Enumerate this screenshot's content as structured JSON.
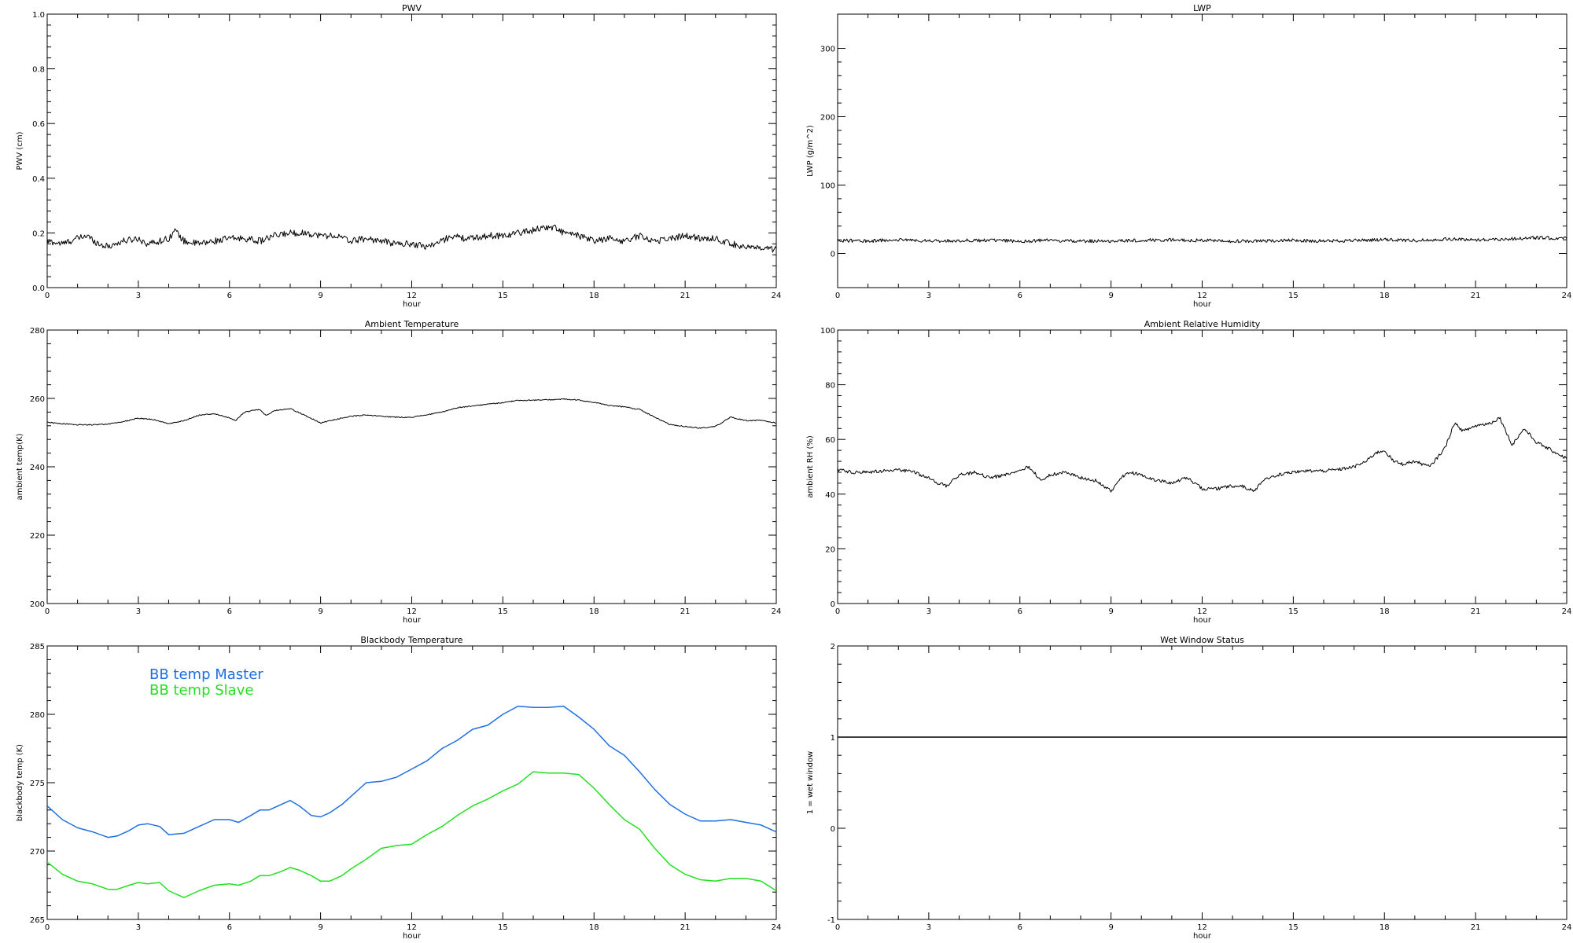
{
  "chart_data": [
    {
      "id": "pwv",
      "type": "line",
      "title": "PWV",
      "xlabel": "hour",
      "ylabel": "PWV (cm)",
      "xlim": [
        0,
        24
      ],
      "ylim": [
        0.0,
        1.0
      ],
      "xticks": [
        "0",
        "3",
        "6",
        "9",
        "12",
        "15",
        "18",
        "21",
        "24"
      ],
      "yticks": [
        "0.0",
        "0.2",
        "0.4",
        "0.6",
        "0.8",
        "1.0"
      ],
      "ytick_values": [
        0.0,
        0.2,
        0.4,
        0.6,
        0.8,
        1.0
      ],
      "noise": 0.012,
      "series": [
        {
          "color": "#000000",
          "x": [
            0,
            0.5,
            1,
            1.3,
            1.7,
            2,
            2.5,
            3,
            3.3,
            3.7,
            4.0,
            4.2,
            4.5,
            5,
            5.5,
            6,
            6.5,
            7,
            7.5,
            8,
            8.5,
            9,
            9.5,
            10,
            10.5,
            11,
            11.5,
            12,
            12.5,
            13,
            13.3,
            13.7,
            14,
            14.5,
            15,
            15.5,
            16,
            16.3,
            16.7,
            17,
            17.5,
            18,
            18.5,
            19,
            19.5,
            20,
            20.5,
            21,
            21.5,
            22,
            22.5,
            23,
            23.5,
            24
          ],
          "y": [
            0.17,
            0.16,
            0.18,
            0.19,
            0.16,
            0.15,
            0.17,
            0.18,
            0.16,
            0.17,
            0.18,
            0.21,
            0.17,
            0.16,
            0.17,
            0.18,
            0.18,
            0.17,
            0.19,
            0.2,
            0.2,
            0.19,
            0.19,
            0.17,
            0.18,
            0.17,
            0.16,
            0.16,
            0.15,
            0.17,
            0.19,
            0.18,
            0.18,
            0.19,
            0.19,
            0.2,
            0.21,
            0.22,
            0.22,
            0.2,
            0.19,
            0.17,
            0.18,
            0.17,
            0.19,
            0.17,
            0.18,
            0.19,
            0.18,
            0.18,
            0.16,
            0.15,
            0.14,
            0.14
          ]
        }
      ]
    },
    {
      "id": "lwp",
      "type": "line",
      "title": "LWP",
      "xlabel": "hour",
      "ylabel": "LWP (g/m^2)",
      "xlim": [
        0,
        24
      ],
      "ylim": [
        -50,
        350
      ],
      "xticks": [
        "0",
        "3",
        "6",
        "9",
        "12",
        "15",
        "18",
        "21",
        "24"
      ],
      "yticks": [
        "0",
        "100",
        "200",
        "300"
      ],
      "ytick_values": [
        0,
        100,
        200,
        300
      ],
      "noise": 2.5,
      "series": [
        {
          "color": "#000000",
          "x": [
            0,
            1,
            2,
            3,
            4,
            5,
            6,
            7,
            8,
            9,
            10,
            11,
            12,
            13,
            14,
            15,
            16,
            17,
            18,
            19,
            20,
            21,
            22,
            23,
            24
          ],
          "y": [
            19,
            18,
            20,
            18,
            19,
            19,
            18,
            19,
            18,
            18,
            19,
            20,
            19,
            18,
            18,
            19,
            18,
            19,
            20,
            19,
            21,
            20,
            21,
            23,
            22
          ]
        }
      ]
    },
    {
      "id": "ambient-temperature",
      "type": "line",
      "title": "Ambient Temperature",
      "xlabel": "hour",
      "ylabel": "ambient temp(K)",
      "xlim": [
        0,
        24
      ],
      "ylim": [
        200,
        280
      ],
      "xticks": [
        "0",
        "3",
        "6",
        "9",
        "12",
        "15",
        "18",
        "21",
        "24"
      ],
      "yticks": [
        "200",
        "220",
        "240",
        "260",
        "280"
      ],
      "ytick_values": [
        200,
        220,
        240,
        260,
        280
      ],
      "noise": 0.15,
      "series": [
        {
          "color": "#000000",
          "x": [
            0,
            0.5,
            1,
            1.5,
            2,
            2.5,
            3,
            3.5,
            4,
            4.5,
            5,
            5.5,
            6,
            6.2,
            6.5,
            7,
            7.2,
            7.5,
            8,
            8.5,
            9,
            9.3,
            10,
            10.5,
            11,
            11.5,
            12,
            12.5,
            13,
            13.5,
            14,
            14.5,
            15,
            15.5,
            16,
            16.5,
            17,
            17.5,
            18,
            18.5,
            19,
            19.5,
            20,
            20.5,
            21,
            21.5,
            22,
            22.5,
            23,
            23.5,
            24
          ],
          "y": [
            253,
            252.6,
            252.3,
            252.3,
            252.5,
            253.2,
            254.2,
            253.8,
            252.6,
            253.5,
            255.1,
            255.5,
            254.3,
            253.5,
            256.0,
            256.8,
            255.0,
            256.5,
            257.0,
            255.0,
            252.8,
            253.5,
            254.8,
            255.1,
            254.8,
            254.5,
            254.5,
            255.2,
            256.0,
            257.3,
            257.8,
            258.3,
            258.8,
            259.4,
            259.5,
            259.6,
            259.8,
            259.5,
            258.8,
            258.0,
            257.5,
            256.8,
            254.5,
            252.3,
            251.8,
            251.3,
            251.8,
            254.5,
            253.5,
            253.6,
            252.8
          ]
        }
      ]
    },
    {
      "id": "ambient-relative-humidity",
      "type": "line",
      "title": "Ambient Relative Humidity",
      "xlabel": "hour",
      "ylabel": "ambient RH (%)",
      "xlim": [
        0,
        24
      ],
      "ylim": [
        0,
        100
      ],
      "xticks": [
        "0",
        "3",
        "6",
        "9",
        "12",
        "15",
        "18",
        "21",
        "24"
      ],
      "yticks": [
        "0",
        "20",
        "40",
        "60",
        "80",
        "100"
      ],
      "ytick_values": [
        0,
        20,
        40,
        60,
        80,
        100
      ],
      "noise": 0.6,
      "series": [
        {
          "color": "#000000",
          "x": [
            0,
            0.5,
            1,
            1.5,
            2,
            2.5,
            3,
            3.3,
            3.6,
            4,
            4.5,
            5,
            5.5,
            6,
            6.3,
            6.7,
            7,
            7.5,
            8,
            8.5,
            9,
            9.3,
            9.6,
            10,
            10.5,
            11,
            11.5,
            12,
            12.5,
            13,
            13.3,
            13.7,
            14,
            14.5,
            15,
            15.5,
            16,
            16.5,
            17,
            17.4,
            17.7,
            18,
            18.3,
            18.6,
            19,
            19.5,
            20,
            20.3,
            20.6,
            21,
            21.5,
            21.8,
            22.2,
            22.6,
            23,
            23.5,
            24
          ],
          "y": [
            49,
            48,
            48,
            48.5,
            49,
            48,
            46,
            44,
            43,
            47,
            48,
            46,
            47,
            49,
            50,
            45,
            47,
            48,
            46,
            45,
            41,
            46,
            48,
            47,
            45,
            44,
            46,
            42,
            42,
            43,
            43,
            41,
            45,
            47,
            48,
            48.5,
            48.5,
            49,
            50,
            52,
            55,
            56,
            52,
            51,
            52,
            50,
            57,
            66,
            63,
            65,
            66,
            68,
            58,
            64,
            59,
            56,
            53
          ]
        }
      ]
    },
    {
      "id": "blackbody-temperature",
      "type": "line",
      "title": "Blackbody Temperature",
      "xlabel": "hour",
      "ylabel": "blackbody temp (K)",
      "xlim": [
        0,
        24
      ],
      "ylim": [
        265,
        285
      ],
      "xticks": [
        "0",
        "3",
        "6",
        "9",
        "12",
        "15",
        "18",
        "21",
        "24"
      ],
      "yticks": [
        "265",
        "270",
        "275",
        "280",
        "285"
      ],
      "ytick_values": [
        265,
        270,
        275,
        280,
        285
      ],
      "noise": 0,
      "legend_position": "top-left",
      "series": [
        {
          "name": "BB temp Master",
          "color": "#1f6fe0",
          "x": [
            0,
            0.5,
            1,
            1.5,
            2,
            2.3,
            2.7,
            3,
            3.3,
            3.7,
            4,
            4.5,
            5,
            5.5,
            6,
            6.3,
            6.7,
            7,
            7.3,
            7.7,
            8,
            8.3,
            8.7,
            9,
            9.3,
            9.7,
            10,
            10.5,
            11,
            11.5,
            12,
            12.5,
            13,
            13.5,
            14,
            14.5,
            15,
            15.5,
            16,
            16.5,
            17,
            17.5,
            18,
            18.5,
            19,
            19.5,
            20,
            20.5,
            21,
            21.5,
            22,
            22.5,
            23,
            23.5,
            24
          ],
          "y": [
            273.3,
            272.3,
            271.7,
            271.4,
            271.0,
            271.1,
            271.5,
            271.9,
            272.0,
            271.8,
            271.2,
            271.3,
            271.8,
            272.3,
            272.3,
            272.1,
            272.6,
            273.0,
            273.0,
            273.4,
            273.7,
            273.3,
            272.6,
            272.5,
            272.8,
            273.4,
            274.0,
            275.0,
            275.1,
            275.4,
            276.0,
            276.6,
            277.5,
            278.1,
            278.9,
            279.2,
            280.0,
            280.6,
            280.5,
            280.5,
            280.6,
            279.8,
            278.9,
            277.7,
            277.0,
            275.8,
            274.5,
            273.4,
            272.7,
            272.2,
            272.2,
            272.3,
            272.1,
            271.9,
            271.4
          ]
        },
        {
          "name": "BB temp Slave",
          "color": "#22e01f",
          "x": [
            0,
            0.5,
            1,
            1.5,
            2,
            2.3,
            2.7,
            3,
            3.3,
            3.7,
            4,
            4.5,
            5,
            5.5,
            6,
            6.3,
            6.7,
            7,
            7.3,
            7.7,
            8,
            8.3,
            8.7,
            9,
            9.3,
            9.7,
            10,
            10.5,
            11,
            11.5,
            12,
            12.5,
            13,
            13.5,
            14,
            14.5,
            15,
            15.5,
            16,
            16.5,
            17,
            17.5,
            18,
            18.5,
            19,
            19.5,
            20,
            20.5,
            21,
            21.5,
            22,
            22.5,
            23,
            23.5,
            24
          ],
          "y": [
            269.2,
            268.3,
            267.8,
            267.6,
            267.2,
            267.2,
            267.5,
            267.7,
            267.6,
            267.7,
            267.1,
            266.6,
            267.1,
            267.5,
            267.6,
            267.5,
            267.8,
            268.2,
            268.2,
            268.5,
            268.8,
            268.6,
            268.2,
            267.8,
            267.8,
            268.2,
            268.7,
            269.4,
            270.2,
            270.4,
            270.5,
            271.2,
            271.8,
            272.6,
            273.3,
            273.8,
            274.4,
            274.9,
            275.8,
            275.7,
            275.7,
            275.6,
            274.6,
            273.4,
            272.3,
            271.6,
            270.2,
            269.0,
            268.3,
            267.9,
            267.8,
            268.0,
            268.0,
            267.8,
            267.1
          ]
        }
      ]
    },
    {
      "id": "wet-window-status",
      "type": "line",
      "title": "Wet Window Status",
      "xlabel": "hour",
      "ylabel": "1 = wet window",
      "xlim": [
        0,
        24
      ],
      "ylim": [
        -1,
        2
      ],
      "xticks": [
        "0",
        "3",
        "6",
        "9",
        "12",
        "15",
        "18",
        "21",
        "24"
      ],
      "yticks": [
        "-1",
        "0",
        "1",
        "2"
      ],
      "ytick_values": [
        -1,
        0,
        1,
        2
      ],
      "noise": 0,
      "series": [
        {
          "color": "#000000",
          "x": [
            0,
            24
          ],
          "y": [
            1,
            1
          ]
        }
      ]
    }
  ]
}
